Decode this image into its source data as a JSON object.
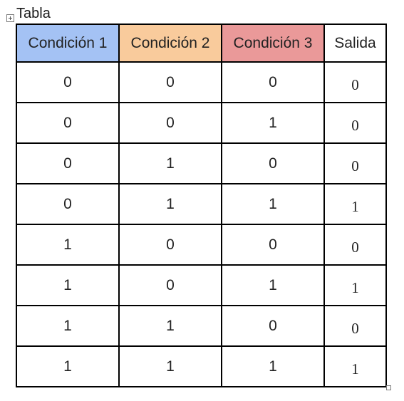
{
  "caption": "Tabla",
  "table": {
    "headers": [
      {
        "label": "Condición 1",
        "color": "#a4c2f4"
      },
      {
        "label": "Condición 2",
        "color": "#f9cb9c"
      },
      {
        "label": "Condición 3",
        "color": "#ea9999"
      },
      {
        "label": "Salida",
        "color": "#ffffff"
      }
    ],
    "rows": [
      [
        "0",
        "0",
        "0",
        "0"
      ],
      [
        "0",
        "0",
        "1",
        "0"
      ],
      [
        "0",
        "1",
        "0",
        "0"
      ],
      [
        "0",
        "1",
        "1",
        "1"
      ],
      [
        "1",
        "0",
        "0",
        "0"
      ],
      [
        "1",
        "0",
        "1",
        "1"
      ],
      [
        "1",
        "1",
        "0",
        "0"
      ],
      [
        "1",
        "1",
        "1",
        "1"
      ]
    ]
  },
  "icons": {
    "move_handle": "table-move-handle-icon",
    "resize_handle": "table-resize-handle-icon"
  }
}
